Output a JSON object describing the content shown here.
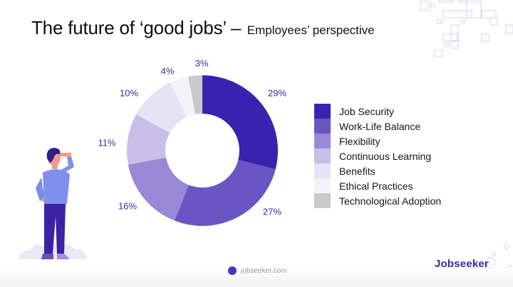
{
  "title": {
    "main": "The future of ‘good jobs’ –",
    "sub": "Employees’ perspective"
  },
  "chart_data": {
    "type": "pie",
    "variant": "donut",
    "title": "The future of ‘good jobs’ – Employees’ perspective",
    "categories": [
      "Job Security",
      "Work-Life Balance",
      "Flexibility",
      "Continuous Learning",
      "Benefits",
      "Ethical Practices",
      "Technological Adoption"
    ],
    "values": [
      29,
      27,
      16,
      11,
      10,
      4,
      3
    ],
    "value_labels": [
      "29%",
      "27%",
      "16%",
      "11%",
      "10%",
      "4%",
      "3%"
    ],
    "colors": [
      "#3a22b0",
      "#6a55c4",
      "#9888d6",
      "#c8bfe8",
      "#e6e3f5",
      "#f3f3f7",
      "#c9c9cb"
    ],
    "unit": "%",
    "legend_position": "right",
    "start_angle": "12 o'clock, clockwise"
  },
  "legend": {
    "items": [
      {
        "label": "Job Security",
        "color": "#3a22b0"
      },
      {
        "label": "Work-Life Balance",
        "color": "#6a55c4"
      },
      {
        "label": "Flexibility",
        "color": "#9888d6"
      },
      {
        "label": "Continuous Learning",
        "color": "#c8bfe8"
      },
      {
        "label": "Benefits",
        "color": "#e6e3f5"
      },
      {
        "label": "Ethical Practices",
        "color": "#f3f3f7"
      },
      {
        "label": "Technological Adoption",
        "color": "#c9c9cb"
      }
    ]
  },
  "labels": {
    "job_security": "29%",
    "work_life": "27%",
    "flexibility": "16%",
    "learning": "11%",
    "benefits": "10%",
    "ethical": "4%",
    "tech": "3%"
  },
  "footer": {
    "site": "jobseeker.com",
    "brand": "Jobseeker"
  }
}
